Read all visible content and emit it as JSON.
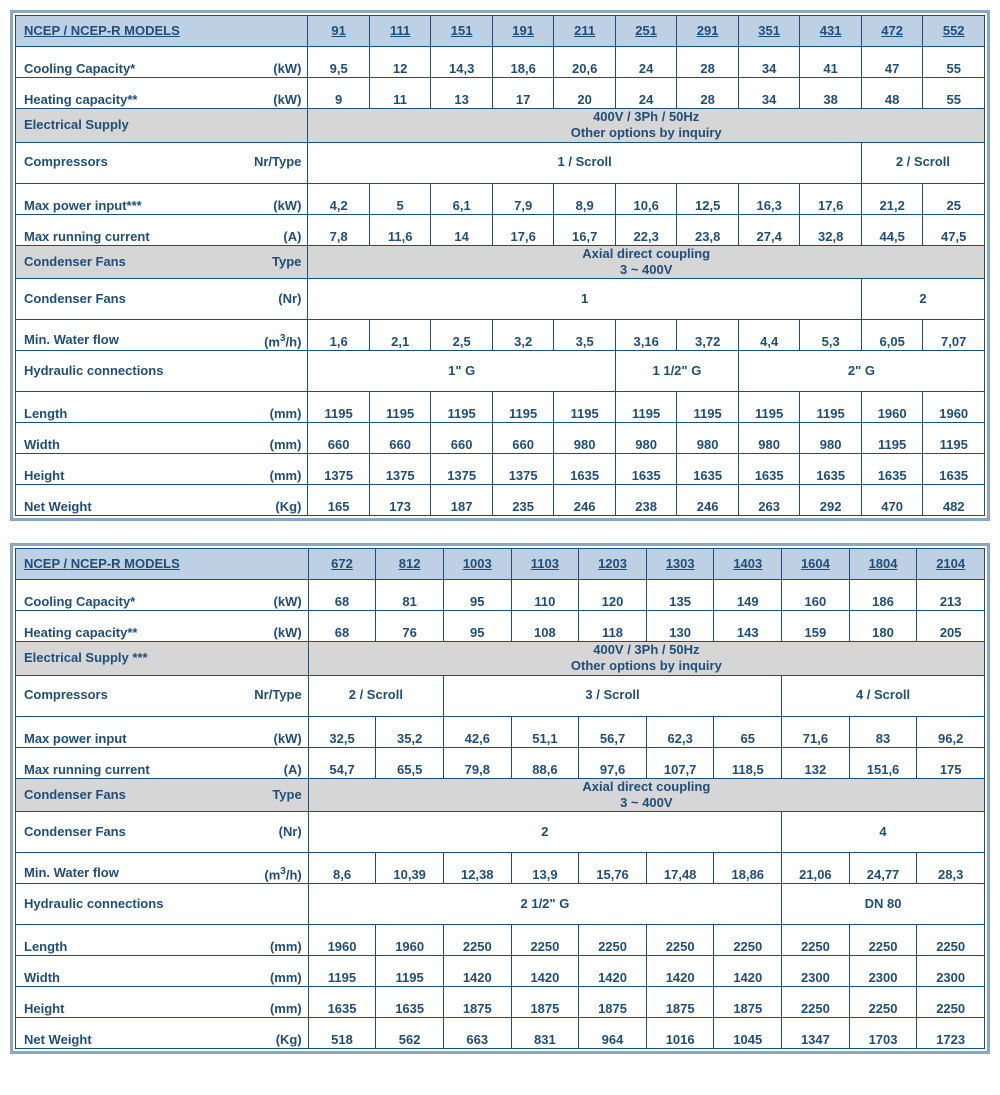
{
  "colors": {
    "text": "#1f4e79",
    "border": "#1f4e79",
    "outer_border": "#8aa6c1",
    "header_bg": "#bdd0e4",
    "shade_bg": "#d6d6d6",
    "bg": "#ffffff"
  },
  "table1": {
    "title": "NCEP / NCEP-R MODELS",
    "models": [
      "91",
      "111",
      "151",
      "191",
      "211",
      "251",
      "291",
      "351",
      "431",
      "472",
      "552"
    ],
    "rows": {
      "cooling": {
        "label": "Cooling Capacity*",
        "unit": "(kW)",
        "values": [
          "9,5",
          "12",
          "14,3",
          "18,6",
          "20,6",
          "24",
          "28",
          "34",
          "41",
          "47",
          "55"
        ]
      },
      "heating": {
        "label": "Heating capacity**",
        "unit": "(kW)",
        "values": [
          "9",
          "11",
          "13",
          "17",
          "20",
          "24",
          "28",
          "34",
          "38",
          "48",
          "55"
        ]
      },
      "elec": {
        "label": "Electrical Supply",
        "value_l1": "400V / 3Ph / 50Hz",
        "value_l2": "Other options by inquiry"
      },
      "comp": {
        "label": "Compressors",
        "unit": "Nr/Type",
        "spans": [
          {
            "n": 9,
            "v": "1 / Scroll"
          },
          {
            "n": 2,
            "v": "2 / Scroll"
          }
        ]
      },
      "maxpow": {
        "label": "Max power input***",
        "unit": "(kW)",
        "values": [
          "4,2",
          "5",
          "6,1",
          "7,9",
          "8,9",
          "10,6",
          "12,5",
          "16,3",
          "17,6",
          "21,2",
          "25"
        ]
      },
      "maxcur": {
        "label": "Max running current",
        "unit": "(A)",
        "values": [
          "7,8",
          "11,6",
          "14",
          "17,6",
          "16,7",
          "22,3",
          "23,8",
          "27,4",
          "32,8",
          "44,5",
          "47,5"
        ]
      },
      "condtype": {
        "label": "Condenser Fans",
        "unit": "Type",
        "value_l1": "Axial direct coupling",
        "value_l2": "3 ~ 400V"
      },
      "condnr": {
        "label": "Condenser Fans",
        "unit": "(Nr)",
        "spans": [
          {
            "n": 9,
            "v": "1"
          },
          {
            "n": 2,
            "v": "2"
          }
        ]
      },
      "water": {
        "label": "Min. Water flow",
        "unit": "(m³/h)",
        "values": [
          "1,6",
          "2,1",
          "2,5",
          "3,2",
          "3,5",
          "3,16",
          "3,72",
          "4,4",
          "5,3",
          "6,05",
          "7,07"
        ]
      },
      "hyd": {
        "label": "Hydraulic connections",
        "spans": [
          {
            "n": 5,
            "v": "1\" G"
          },
          {
            "n": 2,
            "v": "1 1/2\" G"
          },
          {
            "n": 4,
            "v": "2\" G"
          }
        ]
      },
      "length": {
        "label": "Length",
        "unit": "(mm)",
        "values": [
          "1195",
          "1195",
          "1195",
          "1195",
          "1195",
          "1195",
          "1195",
          "1195",
          "1195",
          "1960",
          "1960"
        ]
      },
      "width": {
        "label": "Width",
        "unit": "(mm)",
        "values": [
          "660",
          "660",
          "660",
          "660",
          "980",
          "980",
          "980",
          "980",
          "980",
          "1195",
          "1195"
        ]
      },
      "height": {
        "label": "Height",
        "unit": "(mm)",
        "values": [
          "1375",
          "1375",
          "1375",
          "1375",
          "1635",
          "1635",
          "1635",
          "1635",
          "1635",
          "1635",
          "1635"
        ]
      },
      "weight": {
        "label": "Net Weight",
        "unit": "(Kg)",
        "values": [
          "165",
          "173",
          "187",
          "235",
          "246",
          "238",
          "246",
          "263",
          "292",
          "470",
          "482"
        ]
      }
    }
  },
  "table2": {
    "title": "NCEP / NCEP-R MODELS",
    "models": [
      "672",
      "812",
      "1003",
      "1103",
      "1203",
      "1303",
      "1403",
      "1604",
      "1804",
      "2104"
    ],
    "rows": {
      "cooling": {
        "label": "Cooling Capacity*",
        "unit": "(kW)",
        "values": [
          "68",
          "81",
          "95",
          "110",
          "120",
          "135",
          "149",
          "160",
          "186",
          "213"
        ]
      },
      "heating": {
        "label": "Heating capacity**",
        "unit": "(kW)",
        "values": [
          "68",
          "76",
          "95",
          "108",
          "118",
          "130",
          "143",
          "159",
          "180",
          "205"
        ]
      },
      "elec": {
        "label": "Electrical Supply ***",
        "value_l1": "400V / 3Ph / 50Hz",
        "value_l2": "Other options by inquiry"
      },
      "comp": {
        "label": "Compressors",
        "unit": "Nr/Type",
        "spans": [
          {
            "n": 2,
            "v": "2 / Scroll"
          },
          {
            "n": 5,
            "v": "3 / Scroll"
          },
          {
            "n": 3,
            "v": "4 / Scroll"
          }
        ]
      },
      "maxpow": {
        "label": "Max power input",
        "unit": "(kW)",
        "values": [
          "32,5",
          "35,2",
          "42,6",
          "51,1",
          "56,7",
          "62,3",
          "65",
          "71,6",
          "83",
          "96,2"
        ]
      },
      "maxcur": {
        "label": "Max running current",
        "unit": "(A)",
        "values": [
          "54,7",
          "65,5",
          "79,8",
          "88,6",
          "97,6",
          "107,7",
          "118,5",
          "132",
          "151,6",
          "175"
        ]
      },
      "condtype": {
        "label": "Condenser Fans",
        "unit": "Type",
        "value_l1": "Axial direct coupling",
        "value_l2": "3 ~ 400V"
      },
      "condnr": {
        "label": "Condenser Fans",
        "unit": "(Nr)",
        "spans": [
          {
            "n": 7,
            "v": "2"
          },
          {
            "n": 3,
            "v": "4"
          }
        ]
      },
      "water": {
        "label": "Min. Water flow",
        "unit": "(m³/h)",
        "values": [
          "8,6",
          "10,39",
          "12,38",
          "13,9",
          "15,76",
          "17,48",
          "18,86",
          "21,06",
          "24,77",
          "28,3"
        ]
      },
      "hyd": {
        "label": "Hydraulic connections",
        "spans": [
          {
            "n": 7,
            "v": "2 1/2\" G"
          },
          {
            "n": 3,
            "v": "DN 80"
          }
        ]
      },
      "length": {
        "label": "Length",
        "unit": "(mm)",
        "values": [
          "1960",
          "1960",
          "2250",
          "2250",
          "2250",
          "2250",
          "2250",
          "2250",
          "2250",
          "2250"
        ]
      },
      "width": {
        "label": "Width",
        "unit": "(mm)",
        "values": [
          "1195",
          "1195",
          "1420",
          "1420",
          "1420",
          "1420",
          "1420",
          "2300",
          "2300",
          "2300"
        ]
      },
      "height": {
        "label": "Height",
        "unit": "(mm)",
        "values": [
          "1635",
          "1635",
          "1875",
          "1875",
          "1875",
          "1875",
          "1875",
          "2250",
          "2250",
          "2250"
        ]
      },
      "weight": {
        "label": "Net Weight",
        "unit": "(Kg)",
        "values": [
          "518",
          "562",
          "663",
          "831",
          "964",
          "1016",
          "1045",
          "1347",
          "1703",
          "1723"
        ]
      }
    }
  }
}
